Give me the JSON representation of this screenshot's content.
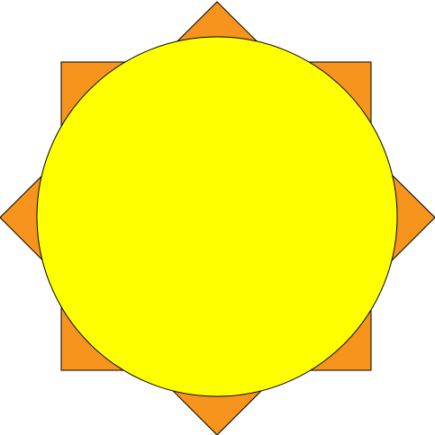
{
  "figure": {
    "shapes": [
      {
        "name": "square",
        "color": "#f7941d"
      },
      {
        "name": "diamond",
        "color": "#f7941d"
      },
      {
        "name": "circle",
        "color": "#ffff00"
      }
    ],
    "outline_color": "#000000",
    "background": "#ffffff"
  }
}
